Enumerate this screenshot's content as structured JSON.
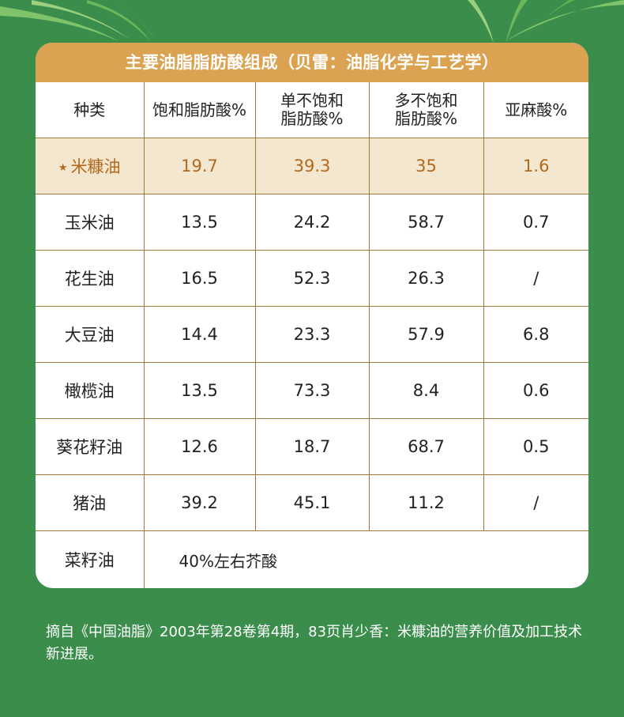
{
  "title": "主要油脂脂肪酸组成（贝雷：油脂化学与工艺学）",
  "headers": {
    "kind": "种类",
    "saturated": "饱和脂肪酸%",
    "mono_line1": "单不饱和",
    "mono_line2": "脂肪酸%",
    "poly_line1": "多不饱和",
    "poly_line2": "脂肪酸%",
    "linolenic": "亚麻酸%"
  },
  "rows": [
    {
      "name": "米糠油",
      "sat": "19.7",
      "mono": "39.3",
      "poly": "35",
      "lin": "1.6"
    },
    {
      "name": "玉米油",
      "sat": "13.5",
      "mono": "24.2",
      "poly": "58.7",
      "lin": "0.7"
    },
    {
      "name": "花生油",
      "sat": "16.5",
      "mono": "52.3",
      "poly": "26.3",
      "lin": "/"
    },
    {
      "name": "大豆油",
      "sat": "14.4",
      "mono": "23.3",
      "poly": "57.9",
      "lin": "6.8"
    },
    {
      "name": "橄榄油",
      "sat": "13.5",
      "mono": "73.3",
      "poly": "8.4",
      "lin": "0.6"
    },
    {
      "name": "葵花籽油",
      "sat": "12.6",
      "mono": "18.7",
      "poly": "68.7",
      "lin": "0.5"
    },
    {
      "name": "猪油",
      "sat": "39.2",
      "mono": "45.1",
      "poly": "11.2",
      "lin": "/"
    }
  ],
  "last_row": {
    "name": "菜籽油",
    "note": "40%左右芥酸"
  },
  "highlight_star": "★",
  "source": "摘自《中国油脂》2003年第28卷第4期，83页肖少香：米糠油的营养价值及加工技术新进展。",
  "colors": {
    "background": "#3a8d4b",
    "title_bar": "#dba351",
    "highlight_row": "#f4e7d0",
    "highlight_text": "#b2691c"
  }
}
